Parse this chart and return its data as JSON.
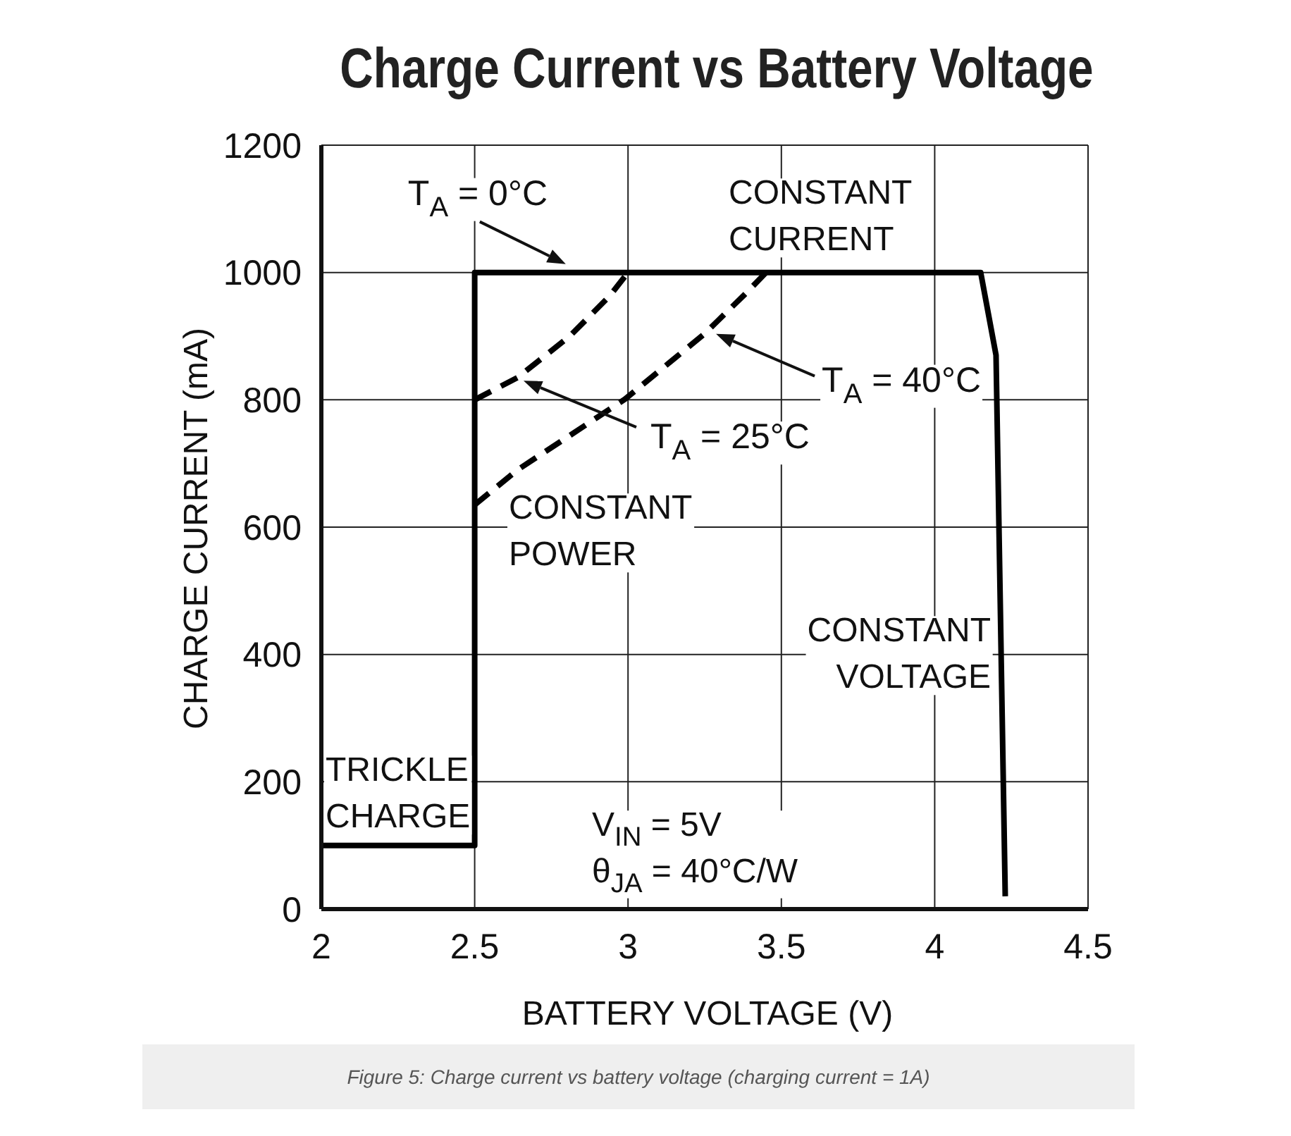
{
  "chart_data": {
    "type": "line",
    "title": "Charge Current vs Battery Voltage",
    "xlabel": "BATTERY VOLTAGE (V)",
    "ylabel": "CHARGE CURRENT (mA)",
    "xlim": [
      2,
      4.5
    ],
    "xticks": [
      2,
      2.5,
      3,
      3.5,
      4,
      4.5
    ],
    "ylim": [
      0,
      1200
    ],
    "yticks": [
      0,
      200,
      400,
      600,
      800,
      1000,
      1200
    ],
    "grid": true,
    "marker": "none",
    "series": [
      {
        "name": "T$_{A}$ = 0°C",
        "color": "#000000",
        "line_style": "solid",
        "x": [
          2,
          2.5,
          2.5,
          4.15,
          4.2,
          4.23
        ],
        "values": [
          100,
          100,
          1000,
          1000,
          870,
          20
        ]
      },
      {
        "name": "T$_{A}$ = 25°C",
        "color": "#000000",
        "line_style": "dashed",
        "x": [
          2.5,
          2.64,
          2.81,
          2.94,
          3
        ],
        "values": [
          800,
          835,
          900,
          963,
          1000
        ]
      },
      {
        "name": "T$_{A}$ = 40°C",
        "color": "#000000",
        "line_style": "dashed",
        "x": [
          2.5,
          2.64,
          2.99,
          3.25,
          3.39,
          3.45
        ],
        "values": [
          635,
          690,
          801,
          904,
          970,
          1000
        ]
      }
    ],
    "annotations": [
      "CONSTANT\nCURRENT",
      "CONSTANT\nPOWER",
      "CONSTANT\nVOLTAGE",
      "TRICKLE\nCHARGE",
      "V$_{IN}$ = 5V\nθ$_{JA}$ = 40°C/W",
      "Figure 5: Charge current vs battery voltage (charging current = 1A)"
    ]
  }
}
